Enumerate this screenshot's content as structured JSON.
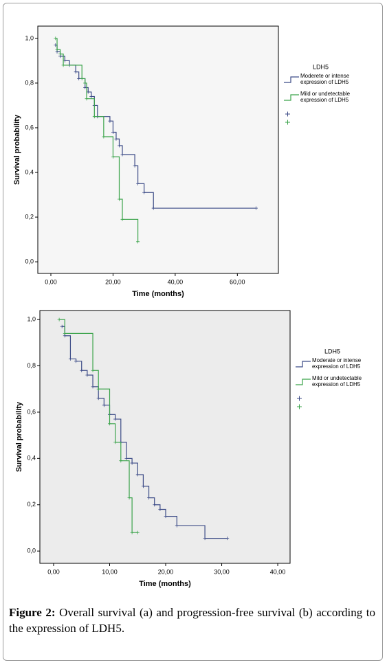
{
  "chart_data": [
    {
      "type": "step",
      "x_label": "Time (months)",
      "y_label": "Survival probability",
      "legend_title": "LDH5",
      "xlim": [
        -4.2,
        73.2
      ],
      "ylim": [
        -0.052,
        1.055
      ],
      "xticks": [
        {
          "value": 0,
          "label": "0,00"
        },
        {
          "value": 20,
          "label": "20,00"
        },
        {
          "value": 40,
          "label": "40,00"
        },
        {
          "value": 60,
          "label": "60,00"
        }
      ],
      "yticks": [
        {
          "value": 0,
          "label": "0,0"
        },
        {
          "value": 0.2,
          "label": "0,2"
        },
        {
          "value": 0.4,
          "label": "0,4"
        },
        {
          "value": 0.6,
          "label": "0,6"
        },
        {
          "value": 0.8,
          "label": "0,8"
        },
        {
          "value": 1,
          "label": "1,0"
        }
      ],
      "series": [
        {
          "name": "Moderete or intense expression of LDH5",
          "color": "#3b4a86",
          "x": [
            1.5,
            2,
            3,
            4.5,
            6,
            8,
            9,
            11,
            12,
            13,
            14,
            15,
            19,
            20,
            21,
            22,
            23,
            27,
            28,
            30,
            33,
            66
          ],
          "values": [
            0.97,
            0.94,
            0.92,
            0.9,
            0.88,
            0.85,
            0.82,
            0.78,
            0.76,
            0.74,
            0.7,
            0.65,
            0.63,
            0.58,
            0.55,
            0.52,
            0.48,
            0.43,
            0.35,
            0.31,
            0.24,
            0.24
          ]
        },
        {
          "name": "Mild or undetectable expression of LDH5",
          "color": "#3aa34a",
          "x": [
            1.5,
            2,
            3,
            4,
            10,
            11,
            11.5,
            14,
            17,
            20,
            22,
            23,
            28
          ],
          "values": [
            1.0,
            0.95,
            0.93,
            0.88,
            0.82,
            0.8,
            0.73,
            0.65,
            0.56,
            0.47,
            0.28,
            0.19,
            0.09
          ]
        }
      ]
    },
    {
      "type": "step",
      "x_label": "Time (months)",
      "y_label": "Survival probability",
      "legend_title": "LDH5",
      "xlim": [
        -2.45,
        42.2
      ],
      "ylim": [
        -0.053,
        1.039
      ],
      "xticks": [
        {
          "value": 0,
          "label": "0,00"
        },
        {
          "value": 10,
          "label": "10,00"
        },
        {
          "value": 20,
          "label": "20,00"
        },
        {
          "value": 30,
          "label": "30,00"
        },
        {
          "value": 40,
          "label": "40,00"
        }
      ],
      "yticks": [
        {
          "value": 0,
          "label": "0,0"
        },
        {
          "value": 0.2,
          "label": "0,2"
        },
        {
          "value": 0.4,
          "label": "0,4"
        },
        {
          "value": 0.6,
          "label": "0,6"
        },
        {
          "value": 0.8,
          "label": "0,8"
        },
        {
          "value": 1,
          "label": "1,0"
        }
      ],
      "series": [
        {
          "name": "Moderate or intense expression of LDH5",
          "color": "#3b4a86",
          "x": [
            1.5,
            2,
            3,
            4,
            5,
            6,
            7,
            8,
            9,
            10,
            11,
            12,
            13,
            14,
            15,
            16,
            17,
            18,
            19,
            20,
            22,
            27,
            31
          ],
          "values": [
            0.97,
            0.93,
            0.83,
            0.82,
            0.78,
            0.76,
            0.71,
            0.66,
            0.63,
            0.59,
            0.57,
            0.47,
            0.4,
            0.38,
            0.33,
            0.28,
            0.23,
            0.2,
            0.18,
            0.15,
            0.11,
            0.055,
            0.055
          ]
        },
        {
          "name": "Mild or undetectable expression of LDH5",
          "color": "#3aa34a",
          "x": [
            1,
            2,
            7,
            8,
            10,
            11,
            12,
            13.5,
            14,
            15
          ],
          "values": [
            1.0,
            0.94,
            0.78,
            0.7,
            0.55,
            0.47,
            0.39,
            0.23,
            0.08,
            0.08
          ]
        }
      ]
    }
  ],
  "caption": {
    "label": "Figure 2:",
    "text": "Overall survival (a) and progression-free survival (b) according to the expression of LDH5."
  }
}
